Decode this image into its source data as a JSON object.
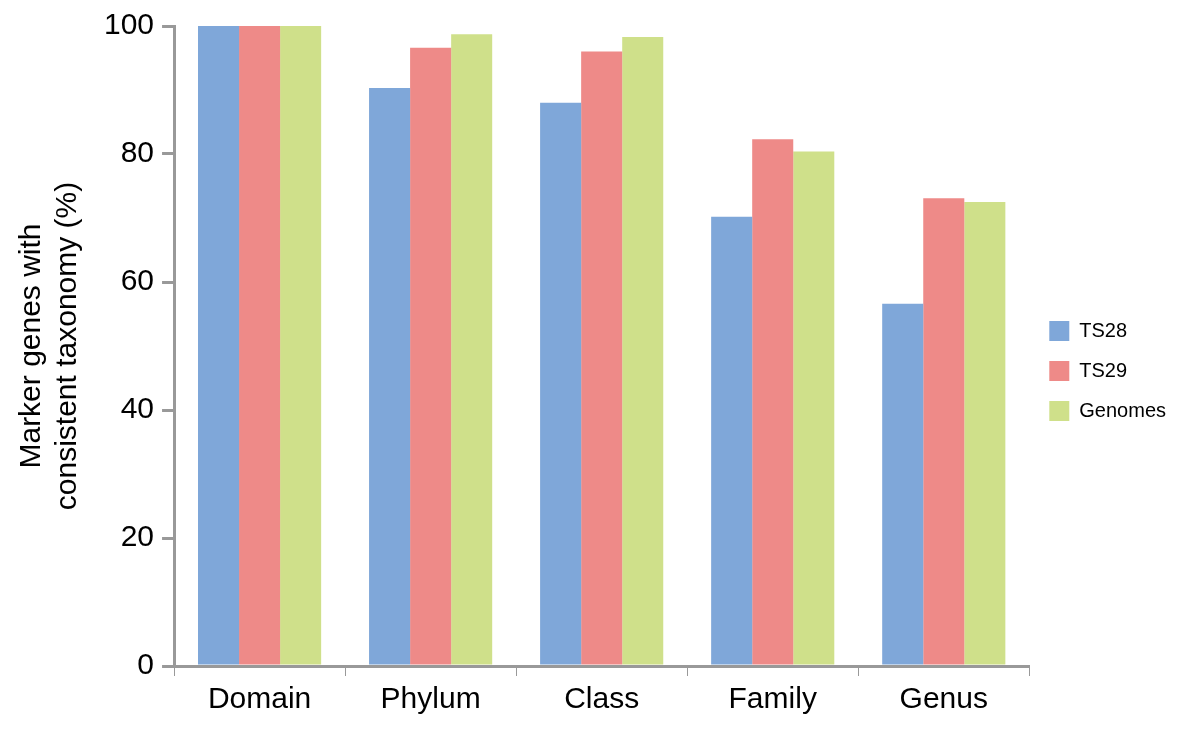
{
  "chart_data": {
    "type": "bar",
    "ylabel": "Marker genes with\nconsistent taxonomy (%)",
    "categories": [
      "Domain",
      "Phylum",
      "Class",
      "Family",
      "Genus"
    ],
    "series": [
      {
        "name": "TS28",
        "color": "#7fa7d9",
        "values": [
          100,
          90.3,
          88,
          70.2,
          56.6
        ]
      },
      {
        "name": "TS29",
        "color": "#ee8a88",
        "values": [
          100,
          96.6,
          96,
          82.3,
          73.1
        ]
      },
      {
        "name": "Genomes",
        "color": "#cfe08a",
        "values": [
          100,
          98.7,
          98.3,
          80.4,
          72.5
        ]
      }
    ],
    "ylim": [
      0,
      100
    ],
    "yticks": [
      0,
      20,
      40,
      60,
      80,
      100
    ],
    "grid": false,
    "legend": "right"
  }
}
